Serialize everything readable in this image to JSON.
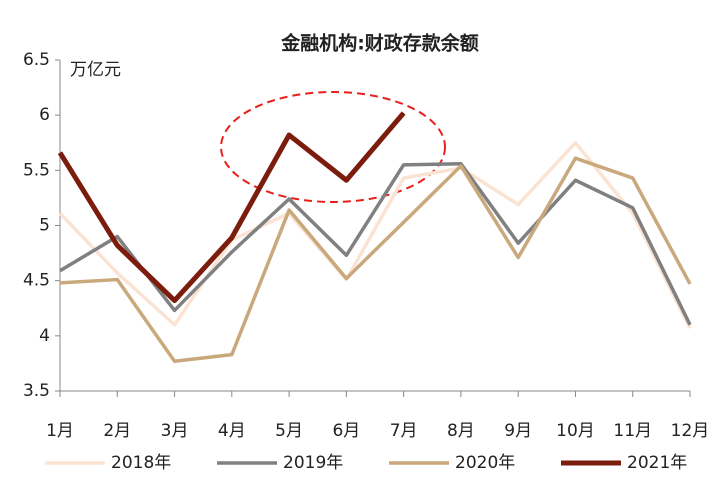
{
  "chart_data": {
    "type": "line",
    "title": "金融机构:财政存款余额",
    "y_label": "万亿元",
    "categories": [
      "1月",
      "2月",
      "3月",
      "4月",
      "5月",
      "6月",
      "7月",
      "8月",
      "9月",
      "10月",
      "11月",
      "12月"
    ],
    "series": [
      {
        "name": "2018年",
        "color": "#fbe3d4",
        "values": [
          5.11,
          4.57,
          4.1,
          4.87,
          5.11,
          4.51,
          5.43,
          5.52,
          5.19,
          5.75,
          5.11,
          4.07
        ]
      },
      {
        "name": "2019年",
        "color": "#808080",
        "values": [
          4.59,
          4.9,
          4.23,
          4.76,
          5.24,
          4.73,
          5.55,
          5.56,
          4.84,
          5.41,
          5.16,
          4.1
        ]
      },
      {
        "name": "2020年",
        "color": "#c9a97c",
        "values": [
          4.48,
          4.51,
          3.77,
          3.83,
          5.14,
          4.52,
          5.03,
          5.54,
          4.71,
          5.61,
          5.43,
          4.47
        ]
      },
      {
        "name": "2021年",
        "color": "#7b1c0c",
        "values": [
          5.66,
          4.82,
          4.32,
          4.89,
          5.82,
          5.41,
          6.02,
          null,
          null,
          null,
          null,
          null
        ]
      }
    ],
    "ylim": [
      3.5,
      6.5
    ],
    "yticks": [
      3.5,
      4,
      4.5,
      5,
      5.5,
      6,
      6.5
    ],
    "grid": false
  }
}
